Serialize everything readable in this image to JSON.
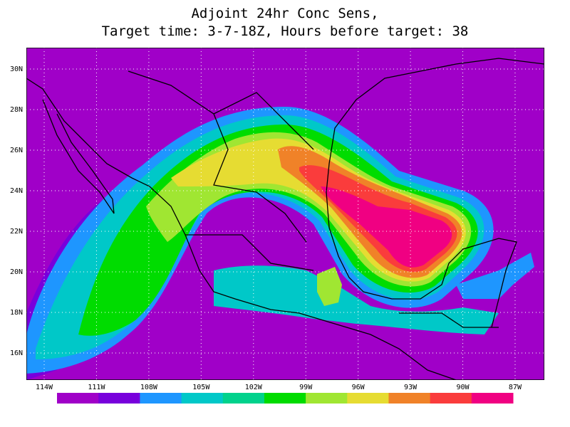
{
  "title": {
    "line1": "Adjoint 24hr Conc Sens,",
    "line2": "Target time: 3-7-18Z, Hours before target: 38"
  },
  "map": {
    "lat_ticks": [
      {
        "value": 30,
        "label": "30N"
      },
      {
        "value": 28,
        "label": "28N"
      },
      {
        "value": 26,
        "label": "26N"
      },
      {
        "value": 24,
        "label": "24N"
      },
      {
        "value": 22,
        "label": "22N"
      },
      {
        "value": 20,
        "label": "20N"
      },
      {
        "value": 18,
        "label": "18N"
      },
      {
        "value": 16,
        "label": "16N"
      }
    ],
    "lon_ticks": [
      {
        "value": -114,
        "label": "114W"
      },
      {
        "value": -111,
        "label": "111W"
      },
      {
        "value": -108,
        "label": "108W"
      },
      {
        "value": -105,
        "label": "105W"
      },
      {
        "value": -102,
        "label": "102W"
      },
      {
        "value": -99,
        "label": "99W"
      },
      {
        "value": -96,
        "label": "96W"
      },
      {
        "value": -93,
        "label": "93W"
      },
      {
        "value": -90,
        "label": "90W"
      },
      {
        "value": -87,
        "label": "87W"
      }
    ],
    "colorbar": [
      "#a000c8",
      "#7800dc",
      "#1e96ff",
      "#00c8c8",
      "#00d28c",
      "#00dc00",
      "#a0e632",
      "#e6dc32",
      "#f08228",
      "#fa3c3c",
      "#f00082"
    ]
  }
}
